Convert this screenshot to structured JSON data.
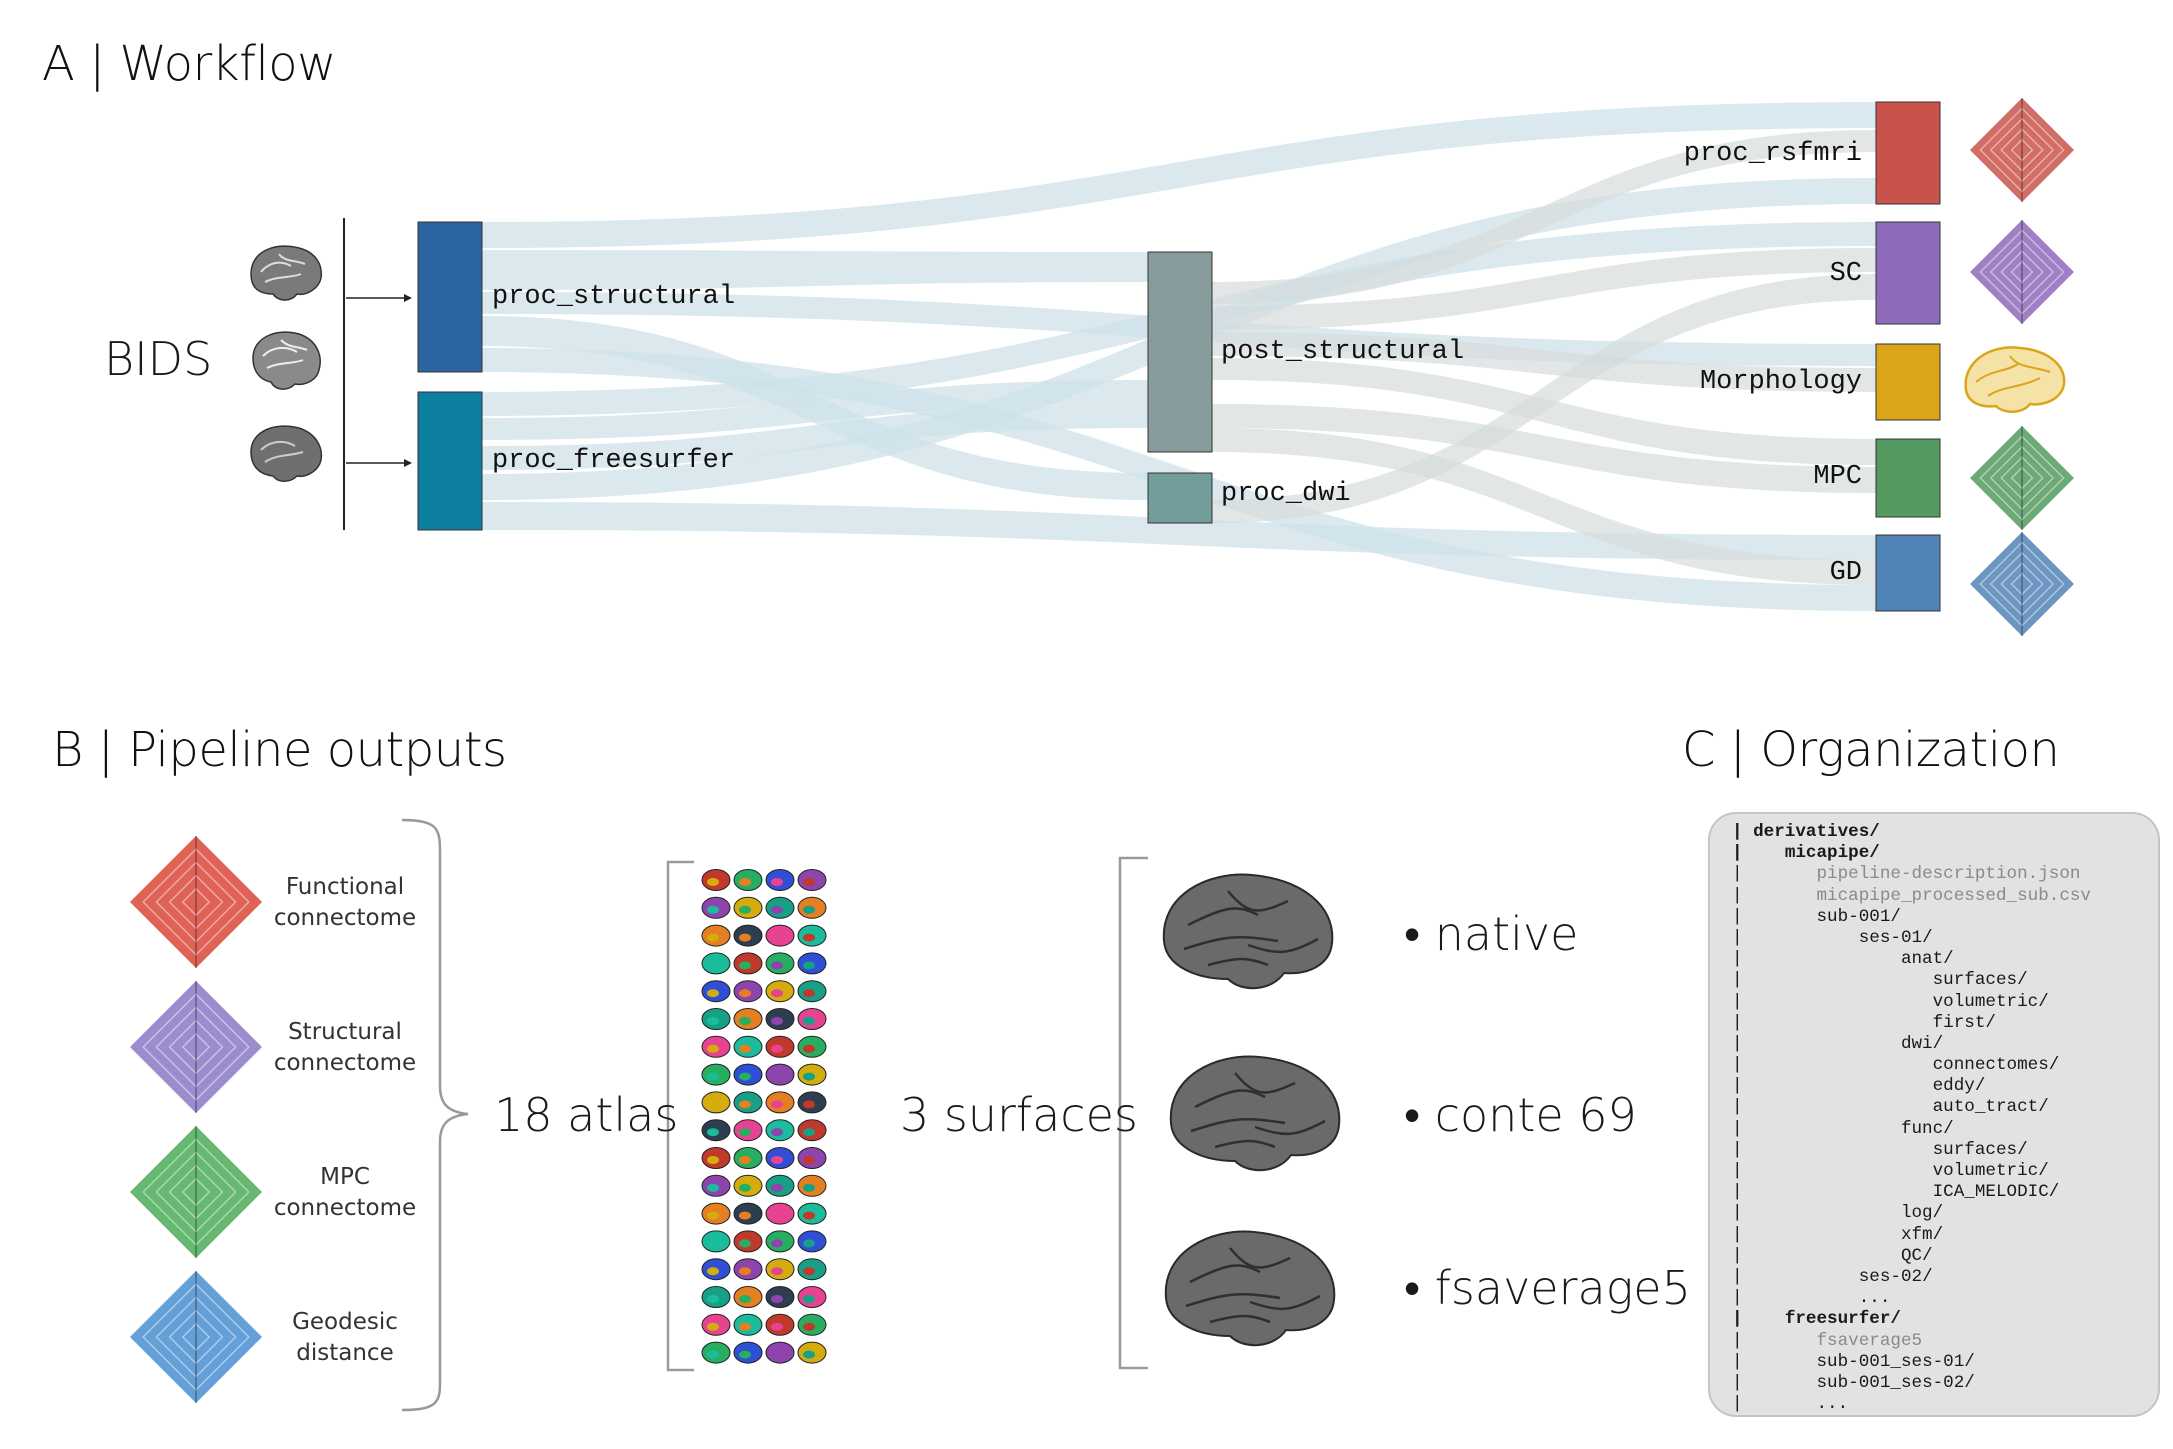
{
  "panelA": {
    "title": "A | Workflow",
    "bids_label": "BIDS",
    "nodes": {
      "proc_structural": "proc_structural",
      "proc_freesurfer": "proc_freesurfer",
      "post_structural": "post_structural",
      "proc_dwi": "proc_dwi",
      "proc_rsfmri": "proc_rsfmri",
      "sc": "SC",
      "morphology": "Morphology",
      "mpc": "MPC",
      "gd": "GD"
    },
    "colors": {
      "proc_structural": "#2b64a0",
      "proc_freesurfer": "#0d7fa0",
      "post_structural": "#879b9c",
      "proc_dwi": "#739d9b",
      "proc_rsfmri": "#c9534a",
      "sc": "#8d6bba",
      "morphology": "#dba51a",
      "mpc": "#54995f",
      "gd": "#5283b6",
      "flow_blue": "#c3dbe6",
      "flow_grey": "#cfd6d5"
    }
  },
  "panelB": {
    "title": "B | Pipeline outputs",
    "items": [
      {
        "line1": "Functional",
        "line2": "connectome",
        "color": "#d9463a"
      },
      {
        "line1": "Structural",
        "line2": "connectome",
        "color": "#8c78c4"
      },
      {
        "line1": "MPC",
        "line2": "connectome",
        "color": "#4cab5a"
      },
      {
        "line1": "Geodesic",
        "line2": "distance",
        "color": "#4a8ed0"
      }
    ],
    "atlas_label": "18 atlas",
    "surfaces_label": "3 surfaces",
    "surfaces": [
      "• native",
      "• conte 69",
      "• fsaverage5"
    ]
  },
  "panelC": {
    "title": "C | Organization",
    "tree": [
      {
        "text": "derivatives/",
        "indent": 0,
        "style": "bold"
      },
      {
        "text": "micapipe/",
        "indent": 1,
        "style": "bold"
      },
      {
        "text": "pipeline-description.json",
        "indent": 2,
        "style": "muted"
      },
      {
        "text": "micapipe_processed_sub.csv",
        "indent": 2,
        "style": "muted"
      },
      {
        "text": "sub-001/",
        "indent": 2,
        "style": "normal"
      },
      {
        "text": "ses-01/",
        "indent": 3,
        "style": "normal"
      },
      {
        "text": "anat/",
        "indent": 4,
        "style": "normal"
      },
      {
        "text": "surfaces/",
        "indent": 5,
        "style": "normal"
      },
      {
        "text": "volumetric/",
        "indent": 5,
        "style": "normal"
      },
      {
        "text": "first/",
        "indent": 5,
        "style": "normal"
      },
      {
        "text": "dwi/",
        "indent": 4,
        "style": "normal"
      },
      {
        "text": "connectomes/",
        "indent": 5,
        "style": "normal"
      },
      {
        "text": "eddy/",
        "indent": 5,
        "style": "normal"
      },
      {
        "text": "auto_tract/",
        "indent": 5,
        "style": "normal"
      },
      {
        "text": "func/",
        "indent": 4,
        "style": "normal"
      },
      {
        "text": "surfaces/",
        "indent": 5,
        "style": "normal"
      },
      {
        "text": "volumetric/",
        "indent": 5,
        "style": "normal"
      },
      {
        "text": "ICA_MELODIC/",
        "indent": 5,
        "style": "normal"
      },
      {
        "text": "log/",
        "indent": 4,
        "style": "normal"
      },
      {
        "text": "xfm/",
        "indent": 4,
        "style": "normal"
      },
      {
        "text": "QC/",
        "indent": 4,
        "style": "normal"
      },
      {
        "text": "ses-02/",
        "indent": 3,
        "style": "normal"
      },
      {
        "text": "...",
        "indent": 3,
        "style": "normal"
      },
      {
        "text": "freesurfer/",
        "indent": 1,
        "style": "bold"
      },
      {
        "text": "fsaverage5",
        "indent": 2,
        "style": "muted"
      },
      {
        "text": "sub-001_ses-01/",
        "indent": 2,
        "style": "normal"
      },
      {
        "text": "sub-001_ses-02/",
        "indent": 2,
        "style": "normal"
      },
      {
        "text": "...",
        "indent": 2,
        "style": "normal"
      }
    ]
  }
}
